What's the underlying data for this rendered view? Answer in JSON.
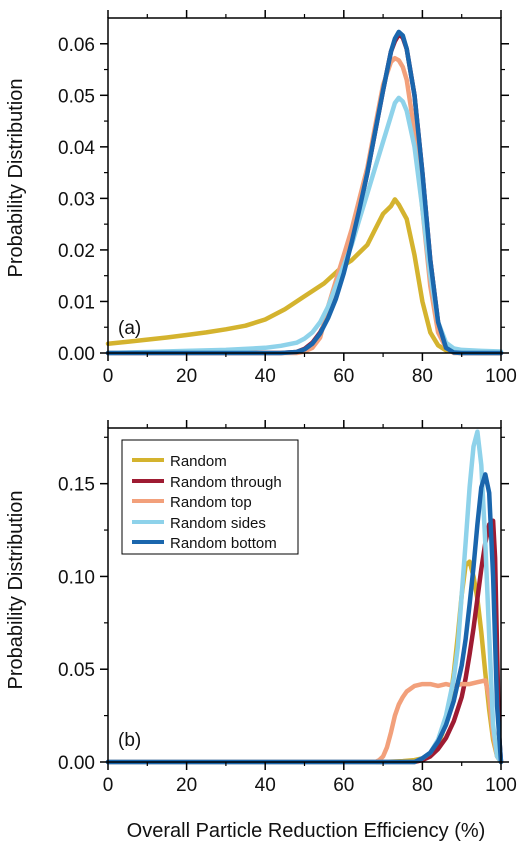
{
  "figure": {
    "xlabel": "Overall Particle Reduction Efficiency (%)",
    "ylabel": "Probability Distribution"
  },
  "legend_entries": [
    "Random",
    "Random through",
    "Random top",
    "Random sides",
    "Random bottom"
  ],
  "colors": {
    "Random": "#d4b32e",
    "Random through": "#9e1b32",
    "Random top": "#f2a07b",
    "Random sides": "#8ed2ea",
    "Random bottom": "#1a66ad"
  },
  "chart_data": [
    {
      "type": "line",
      "panel_label": "(a)",
      "xlim": [
        0,
        100
      ],
      "ylim": [
        0,
        0.065
      ],
      "xticks": [
        "0",
        "20",
        "40",
        "60",
        "80",
        "100"
      ],
      "yticks": [
        "0.00",
        "0.01",
        "0.02",
        "0.03",
        "0.04",
        "0.05",
        "0.06"
      ],
      "legend": "none",
      "grid": false,
      "series": [
        {
          "name": "Random",
          "x": [
            0,
            5,
            10,
            15,
            20,
            25,
            30,
            35,
            40,
            45,
            50,
            55,
            60,
            62,
            64,
            66,
            68,
            70,
            72,
            73,
            74,
            76,
            78,
            80,
            82,
            84,
            86,
            88,
            90,
            95,
            100
          ],
          "values": [
            0.0018,
            0.0022,
            0.0026,
            0.003,
            0.0035,
            0.004,
            0.0046,
            0.0053,
            0.0065,
            0.0085,
            0.011,
            0.0135,
            0.017,
            0.018,
            0.0195,
            0.021,
            0.024,
            0.027,
            0.0285,
            0.0298,
            0.0288,
            0.026,
            0.019,
            0.01,
            0.004,
            0.0015,
            0.0005,
            0.0002,
            0.0001,
            0,
            0
          ]
        },
        {
          "name": "Random through",
          "x": [
            0,
            44,
            48,
            50,
            52,
            54,
            56,
            58,
            60,
            62,
            64,
            66,
            68,
            70,
            72,
            73,
            74,
            75,
            76,
            78,
            80,
            82,
            84,
            86,
            88,
            90,
            100
          ],
          "values": [
            0,
            0,
            0.0002,
            0.0008,
            0.002,
            0.004,
            0.007,
            0.011,
            0.016,
            0.022,
            0.028,
            0.035,
            0.043,
            0.051,
            0.0585,
            0.0605,
            0.0618,
            0.0612,
            0.059,
            0.05,
            0.035,
            0.018,
            0.006,
            0.001,
            0.0001,
            0,
            0
          ]
        },
        {
          "name": "Random top",
          "x": [
            0,
            48,
            50,
            52,
            54,
            56,
            58,
            60,
            62,
            64,
            66,
            68,
            70,
            72,
            73,
            74,
            75,
            76,
            78,
            80,
            82,
            84,
            86,
            88,
            100
          ],
          "values": [
            0,
            0,
            0.0003,
            0.001,
            0.003,
            0.009,
            0.014,
            0.019,
            0.024,
            0.03,
            0.036,
            0.044,
            0.052,
            0.0565,
            0.0572,
            0.0568,
            0.0555,
            0.053,
            0.043,
            0.028,
            0.013,
            0.004,
            0.001,
            0,
            0
          ]
        },
        {
          "name": "Random sides",
          "x": [
            0,
            10,
            20,
            30,
            40,
            44,
            48,
            50,
            52,
            54,
            56,
            58,
            60,
            62,
            64,
            66,
            68,
            70,
            72,
            73,
            74,
            75,
            76,
            78,
            80,
            82,
            84,
            86,
            88,
            90,
            95,
            100
          ],
          "values": [
            0,
            0.0002,
            0.0004,
            0.0006,
            0.001,
            0.0014,
            0.002,
            0.0028,
            0.004,
            0.006,
            0.009,
            0.013,
            0.017,
            0.021,
            0.026,
            0.031,
            0.036,
            0.041,
            0.046,
            0.0485,
            0.0495,
            0.0488,
            0.047,
            0.04,
            0.028,
            0.015,
            0.006,
            0.002,
            0.0009,
            0.0006,
            0.0004,
            0.0003
          ]
        },
        {
          "name": "Random bottom",
          "x": [
            0,
            44,
            48,
            50,
            52,
            54,
            56,
            58,
            60,
            62,
            64,
            66,
            68,
            70,
            72,
            73,
            74,
            75,
            76,
            78,
            80,
            82,
            84,
            86,
            88,
            90,
            100
          ],
          "values": [
            0,
            0,
            0.0002,
            0.0007,
            0.0018,
            0.0038,
            0.0068,
            0.0105,
            0.0155,
            0.0215,
            0.028,
            0.035,
            0.043,
            0.051,
            0.0585,
            0.061,
            0.0623,
            0.0616,
            0.059,
            0.05,
            0.035,
            0.018,
            0.006,
            0.001,
            0.0001,
            0,
            0
          ]
        }
      ]
    },
    {
      "type": "line",
      "panel_label": "(b)",
      "xlim": [
        0,
        100
      ],
      "ylim": [
        0,
        0.18
      ],
      "xticks": [
        "0",
        "20",
        "40",
        "60",
        "80",
        "100"
      ],
      "yticks": [
        "0.00",
        "0.05",
        "0.10",
        "0.15"
      ],
      "legend": "top-left",
      "grid": false,
      "series": [
        {
          "name": "Random",
          "x": [
            0,
            70,
            75,
            78,
            80,
            82,
            84,
            85,
            86,
            87,
            88,
            89,
            90,
            91,
            92,
            93,
            94,
            95,
            96,
            97,
            98,
            99,
            100
          ],
          "values": [
            0,
            0,
            0.0005,
            0.001,
            0.002,
            0.004,
            0.01,
            0.015,
            0.022,
            0.032,
            0.048,
            0.068,
            0.09,
            0.106,
            0.108,
            0.1,
            0.088,
            0.07,
            0.048,
            0.028,
            0.012,
            0.003,
            0
          ]
        },
        {
          "name": "Random through",
          "x": [
            0,
            78,
            80,
            82,
            84,
            86,
            88,
            90,
            91,
            92,
            93,
            94,
            95,
            96,
            97,
            98,
            98.5,
            99,
            99.5,
            100
          ],
          "values": [
            0,
            0,
            0.001,
            0.003,
            0.007,
            0.013,
            0.022,
            0.035,
            0.045,
            0.058,
            0.072,
            0.088,
            0.104,
            0.118,
            0.128,
            0.13,
            0.11,
            0.06,
            0.015,
            0
          ]
        },
        {
          "name": "Random top",
          "x": [
            0,
            68,
            69,
            70,
            71,
            72,
            73,
            74,
            75,
            76,
            78,
            80,
            82,
            84,
            86,
            88,
            90,
            92,
            94,
            96,
            97,
            98,
            99,
            100
          ],
          "values": [
            0,
            0,
            0.001,
            0.003,
            0.008,
            0.016,
            0.025,
            0.031,
            0.035,
            0.038,
            0.041,
            0.042,
            0.042,
            0.041,
            0.042,
            0.041,
            0.042,
            0.042,
            0.043,
            0.044,
            0.035,
            0.015,
            0.003,
            0
          ]
        },
        {
          "name": "Random sides",
          "x": [
            0,
            78,
            80,
            82,
            84,
            86,
            88,
            89,
            90,
            91,
            92,
            93,
            94,
            95,
            96,
            97,
            98,
            99,
            100
          ],
          "values": [
            0,
            0,
            0.002,
            0.005,
            0.012,
            0.025,
            0.045,
            0.062,
            0.09,
            0.118,
            0.148,
            0.17,
            0.178,
            0.16,
            0.118,
            0.068,
            0.02,
            0.003,
            0
          ]
        },
        {
          "name": "Random bottom",
          "x": [
            0,
            78,
            80,
            82,
            84,
            86,
            88,
            90,
            91,
            92,
            93,
            94,
            95,
            96,
            97,
            98,
            99,
            100
          ],
          "values": [
            0,
            0,
            0.002,
            0.005,
            0.011,
            0.02,
            0.033,
            0.052,
            0.066,
            0.085,
            0.105,
            0.128,
            0.148,
            0.155,
            0.145,
            0.1,
            0.03,
            0
          ]
        }
      ]
    }
  ]
}
